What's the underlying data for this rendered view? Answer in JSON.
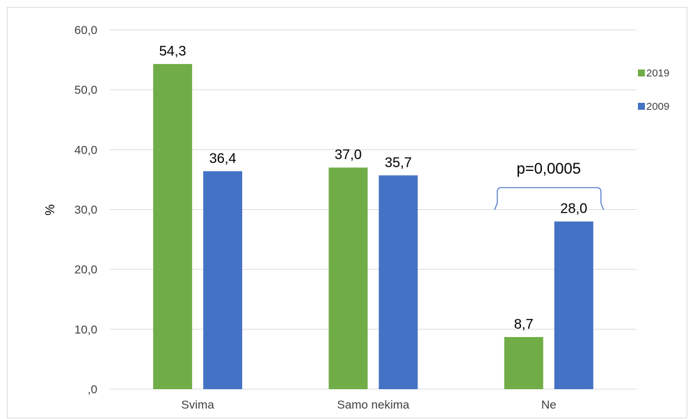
{
  "chart_data": {
    "type": "bar",
    "categories": [
      "Svima",
      "Samo nekima",
      "Ne"
    ],
    "series": [
      {
        "name": "2019",
        "values": [
          54.3,
          37.0,
          8.7
        ],
        "labels": [
          "54,3",
          "37,0",
          "8,7"
        ],
        "color": "#70ad47"
      },
      {
        "name": "2009",
        "values": [
          36.4,
          35.7,
          28.0
        ],
        "labels": [
          "36,4",
          "35,7",
          "28,0"
        ],
        "color": "#4472c4"
      }
    ],
    "ylim": [
      0,
      60
    ],
    "yticks": [
      0,
      10,
      20,
      30,
      40,
      50,
      60
    ],
    "ytick_labels": [
      ",0",
      "10,0",
      "20,0",
      "30,0",
      "40,0",
      "50,0",
      "60,0"
    ],
    "ylabel": "%",
    "xlabel": "",
    "title": "",
    "grid": true,
    "legend_position": "right",
    "annotation": {
      "text": "p=0,0005",
      "category": "Ne"
    },
    "grid_color": "#d9d9d9",
    "bracket_color": "#4472c4"
  }
}
